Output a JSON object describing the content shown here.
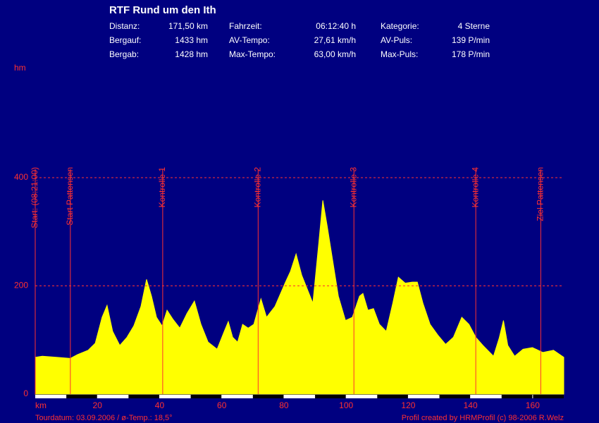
{
  "chart_data": {
    "type": "area",
    "title": "RTF Rund um den Ith",
    "stats": [
      [
        [
          "Distanz:",
          "171,50 km"
        ],
        [
          "Fahrzeit:",
          "06:12:40 h"
        ],
        [
          "Kategorie:",
          "4 Sterne"
        ]
      ],
      [
        [
          "Bergauf:",
          "1433 hm"
        ],
        [
          "AV-Tempo:",
          "27,61 km/h"
        ],
        [
          "AV-Puls:",
          "139 P/min"
        ]
      ],
      [
        [
          "Bergab:",
          "1428 hm"
        ],
        [
          "Max-Tempo:",
          "63,00 km/h"
        ],
        [
          "Max-Puls:",
          "178 P/min"
        ]
      ]
    ],
    "y_label": "hm",
    "x_label": "km",
    "footer_left": "Tourdatum: 03.09.2006  /  ø-Temp.: 18,5°",
    "footer_right": "Profil created by HRMProfil (c) 98-2006 R.Welz",
    "color": "#ffff00",
    "marker_color": "#ff3030",
    "grid": true,
    "xlim": [
      0,
      170
    ],
    "ylim": [
      0,
      400
    ],
    "xticks": [
      20,
      40,
      60,
      80,
      100,
      120,
      140,
      160
    ],
    "yticks": [
      0,
      200,
      400
    ],
    "markers": [
      {
        "label": "Start: (08:21:00)",
        "x": 0
      },
      {
        "label": "Start Pattensen",
        "x": 11.3
      },
      {
        "label": "Kontrolle 1",
        "x": 41
      },
      {
        "label": "Kontrolle 2",
        "x": 71.7
      },
      {
        "label": "Kontrolle 3",
        "x": 102.5
      },
      {
        "label": "Kontrolle 4",
        "x": 141.7
      },
      {
        "label": "Ziel Pattensen",
        "x": 162.6
      }
    ],
    "x": [
      0,
      2.3,
      6.8,
      11.3,
      13.6,
      17,
      19.3,
      21.5,
      23.1,
      24.9,
      27.2,
      29.5,
      31.7,
      34,
      35.8,
      37.4,
      39,
      40.8,
      42.4,
      44.2,
      46.5,
      48.8,
      51.2,
      53.3,
      55.6,
      58.5,
      60.8,
      62.1,
      63.5,
      65.1,
      66.7,
      68.5,
      70.3,
      72.6,
      74.4,
      77.1,
      80.5,
      82.1,
      83.9,
      85.7,
      87.5,
      89.3,
      91.2,
      92.5,
      93.9,
      95.7,
      97.5,
      99.8,
      102,
      104.3,
      105.4,
      107,
      108.8,
      110.7,
      112.9,
      115,
      116.8,
      119,
      121.3,
      122.9,
      124.7,
      127,
      129.5,
      132,
      134.5,
      137.2,
      139.5,
      141.7,
      144,
      147.4,
      149.2,
      150.6,
      152,
      154.2,
      156.9,
      159.9,
      163.3,
      166.7,
      170
    ],
    "values": [
      68,
      70,
      68,
      66,
      73,
      81,
      94,
      142,
      164,
      116,
      90,
      105,
      126,
      162,
      212,
      181,
      142,
      126,
      155,
      139,
      122,
      149,
      172,
      129,
      96,
      83,
      116,
      134,
      105,
      96,
      129,
      122,
      129,
      176,
      142,
      162,
      207,
      227,
      259,
      220,
      194,
      168,
      279,
      358,
      311,
      246,
      181,
      136,
      142,
      181,
      186,
      155,
      158,
      129,
      116,
      168,
      216,
      205,
      207,
      207,
      168,
      129,
      109,
      92,
      105,
      142,
      129,
      105,
      90,
      70,
      103,
      136,
      90,
      70,
      83,
      86,
      77,
      81,
      68
    ]
  }
}
